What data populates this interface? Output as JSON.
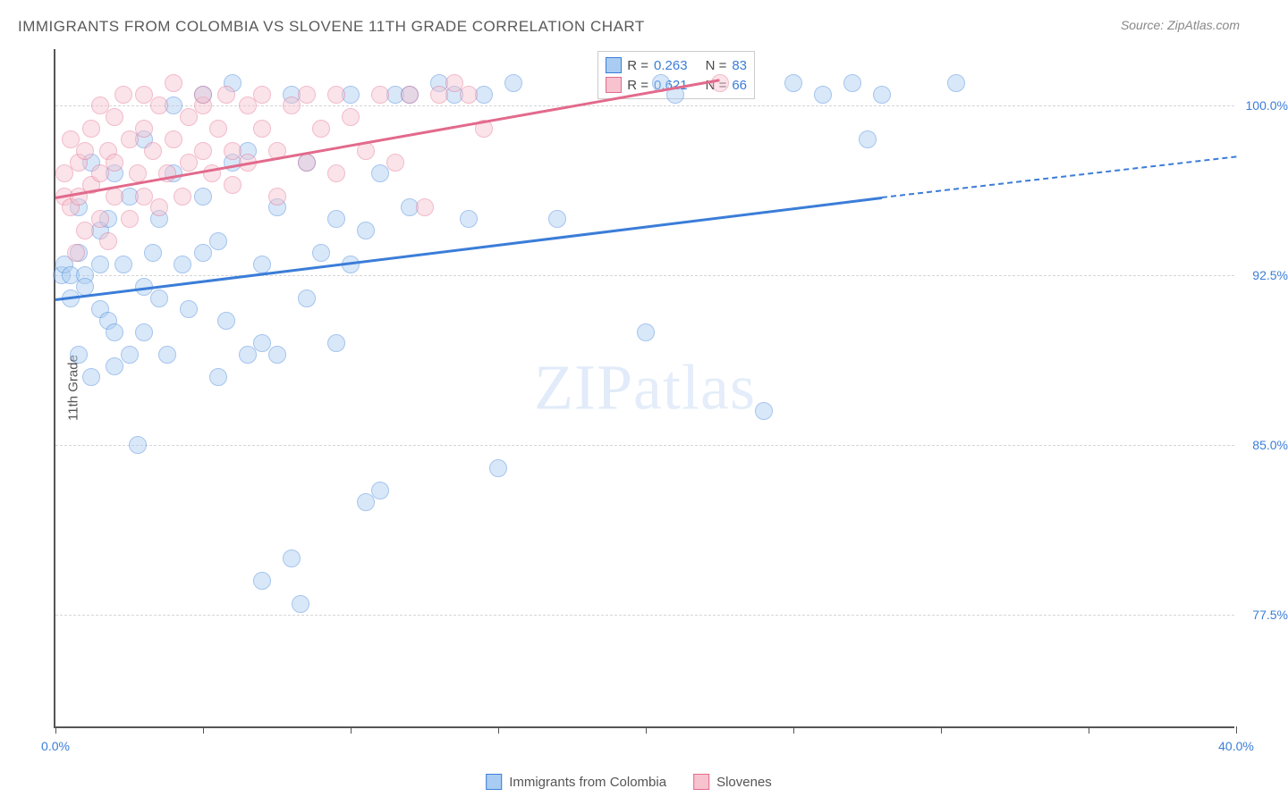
{
  "title": "IMMIGRANTS FROM COLOMBIA VS SLOVENE 11TH GRADE CORRELATION CHART",
  "source": "Source: ZipAtlas.com",
  "ylabel": "11th Grade",
  "watermark": "ZIPatlas",
  "chart": {
    "type": "scatter",
    "background_color": "#ffffff",
    "grid_color": "#d5d5d5",
    "axis_color": "#555555",
    "xlim": [
      0,
      40
    ],
    "ylim": [
      72.5,
      102.5
    ],
    "xticks": [
      0,
      5,
      10,
      15,
      20,
      25,
      30,
      35,
      40
    ],
    "xtick_labels_shown": {
      "0": "0.0%",
      "40": "40.0%"
    },
    "yticks": [
      77.5,
      85.0,
      92.5,
      100.0
    ],
    "ytick_labels": [
      "77.5%",
      "85.0%",
      "92.5%",
      "100.0%"
    ],
    "marker_radius": 10,
    "marker_opacity": 0.45,
    "marker_border_opacity": 0.9,
    "title_fontsize": 17,
    "label_fontsize": 15,
    "tick_fontsize": 14,
    "tick_label_color": "#3b7dd8"
  },
  "series": [
    {
      "name": "Immigrants from Colombia",
      "color_fill": "#a9cdf2",
      "color_stroke": "#3b7dd8",
      "R": "0.263",
      "N": "83",
      "trend": {
        "x0": 0,
        "y0": 91.5,
        "x1": 28,
        "y1": 96.0,
        "dash_to_x": 40,
        "dash_to_y": 97.8
      },
      "points": [
        [
          0.2,
          92.5
        ],
        [
          0.3,
          93.0
        ],
        [
          0.5,
          92.5
        ],
        [
          0.5,
          91.5
        ],
        [
          0.8,
          93.5
        ],
        [
          0.8,
          95.5
        ],
        [
          0.8,
          89.0
        ],
        [
          1.0,
          92.5
        ],
        [
          1.0,
          92.0
        ],
        [
          1.2,
          97.5
        ],
        [
          1.2,
          88.0
        ],
        [
          1.5,
          94.5
        ],
        [
          1.5,
          91.0
        ],
        [
          1.5,
          93.0
        ],
        [
          1.8,
          90.5
        ],
        [
          1.8,
          95.0
        ],
        [
          2.0,
          97.0
        ],
        [
          2.0,
          90.0
        ],
        [
          2.0,
          88.5
        ],
        [
          2.3,
          93.0
        ],
        [
          2.5,
          96.0
        ],
        [
          2.5,
          89.0
        ],
        [
          2.8,
          85.0
        ],
        [
          3.0,
          92.0
        ],
        [
          3.0,
          98.5
        ],
        [
          3.0,
          90.0
        ],
        [
          3.3,
          93.5
        ],
        [
          3.5,
          95.0
        ],
        [
          3.5,
          91.5
        ],
        [
          3.8,
          89.0
        ],
        [
          4.0,
          97.0
        ],
        [
          4.0,
          100.0
        ],
        [
          4.3,
          93.0
        ],
        [
          4.5,
          91.0
        ],
        [
          5.0,
          96.0
        ],
        [
          5.0,
          93.5
        ],
        [
          5.0,
          100.5
        ],
        [
          5.5,
          88.0
        ],
        [
          5.5,
          94.0
        ],
        [
          5.8,
          90.5
        ],
        [
          6.0,
          97.5
        ],
        [
          6.0,
          101.0
        ],
        [
          6.5,
          89.0
        ],
        [
          6.5,
          98.0
        ],
        [
          7.0,
          93.0
        ],
        [
          7.0,
          79.0
        ],
        [
          7.0,
          89.5
        ],
        [
          7.5,
          95.5
        ],
        [
          7.5,
          89.0
        ],
        [
          8.0,
          100.5
        ],
        [
          8.0,
          80.0
        ],
        [
          8.3,
          78.0
        ],
        [
          8.5,
          91.5
        ],
        [
          8.5,
          97.5
        ],
        [
          9.0,
          93.5
        ],
        [
          9.5,
          95.0
        ],
        [
          9.5,
          89.5
        ],
        [
          10.0,
          100.5
        ],
        [
          10.0,
          93.0
        ],
        [
          10.5,
          94.5
        ],
        [
          10.5,
          82.5
        ],
        [
          11.0,
          97.0
        ],
        [
          11.0,
          83.0
        ],
        [
          11.5,
          100.5
        ],
        [
          12.0,
          95.5
        ],
        [
          12.0,
          100.5
        ],
        [
          13.0,
          101.0
        ],
        [
          13.5,
          100.5
        ],
        [
          14.0,
          95.0
        ],
        [
          14.5,
          100.5
        ],
        [
          15.0,
          84.0
        ],
        [
          15.5,
          101.0
        ],
        [
          17.0,
          95.0
        ],
        [
          20.0,
          90.0
        ],
        [
          20.5,
          101.0
        ],
        [
          21.0,
          100.5
        ],
        [
          24.0,
          86.5
        ],
        [
          25.0,
          101.0
        ],
        [
          26.0,
          100.5
        ],
        [
          27.0,
          101.0
        ],
        [
          27.5,
          98.5
        ],
        [
          28.0,
          100.5
        ],
        [
          30.5,
          101.0
        ]
      ]
    },
    {
      "name": "Slovenes",
      "color_fill": "#f6c3cf",
      "color_stroke": "#e26a8c",
      "R": "0.621",
      "N": "66",
      "trend": {
        "x0": 0,
        "y0": 96.0,
        "x1": 22.5,
        "y1": 101.2
      },
      "points": [
        [
          0.3,
          96.0
        ],
        [
          0.3,
          97.0
        ],
        [
          0.5,
          95.5
        ],
        [
          0.5,
          98.5
        ],
        [
          0.7,
          93.5
        ],
        [
          0.8,
          96.0
        ],
        [
          0.8,
          97.5
        ],
        [
          1.0,
          98.0
        ],
        [
          1.0,
          94.5
        ],
        [
          1.2,
          99.0
        ],
        [
          1.2,
          96.5
        ],
        [
          1.5,
          100.0
        ],
        [
          1.5,
          95.0
        ],
        [
          1.5,
          97.0
        ],
        [
          1.8,
          98.0
        ],
        [
          1.8,
          94.0
        ],
        [
          2.0,
          99.5
        ],
        [
          2.0,
          96.0
        ],
        [
          2.0,
          97.5
        ],
        [
          2.3,
          100.5
        ],
        [
          2.5,
          95.0
        ],
        [
          2.5,
          98.5
        ],
        [
          2.8,
          97.0
        ],
        [
          3.0,
          99.0
        ],
        [
          3.0,
          100.5
        ],
        [
          3.0,
          96.0
        ],
        [
          3.3,
          98.0
        ],
        [
          3.5,
          95.5
        ],
        [
          3.5,
          100.0
        ],
        [
          3.8,
          97.0
        ],
        [
          4.0,
          98.5
        ],
        [
          4.0,
          101.0
        ],
        [
          4.3,
          96.0
        ],
        [
          4.5,
          99.5
        ],
        [
          4.5,
          97.5
        ],
        [
          5.0,
          100.0
        ],
        [
          5.0,
          98.0
        ],
        [
          5.0,
          100.5
        ],
        [
          5.3,
          97.0
        ],
        [
          5.5,
          99.0
        ],
        [
          5.8,
          100.5
        ],
        [
          6.0,
          98.0
        ],
        [
          6.0,
          96.5
        ],
        [
          6.5,
          100.0
        ],
        [
          6.5,
          97.5
        ],
        [
          7.0,
          99.0
        ],
        [
          7.0,
          100.5
        ],
        [
          7.5,
          98.0
        ],
        [
          7.5,
          96.0
        ],
        [
          8.0,
          100.0
        ],
        [
          8.5,
          97.5
        ],
        [
          8.5,
          100.5
        ],
        [
          9.0,
          99.0
        ],
        [
          9.5,
          97.0
        ],
        [
          9.5,
          100.5
        ],
        [
          10.0,
          99.5
        ],
        [
          10.5,
          98.0
        ],
        [
          11.0,
          100.5
        ],
        [
          11.5,
          97.5
        ],
        [
          12.0,
          100.5
        ],
        [
          12.5,
          95.5
        ],
        [
          13.0,
          100.5
        ],
        [
          13.5,
          101.0
        ],
        [
          14.0,
          100.5
        ],
        [
          14.5,
          99.0
        ],
        [
          22.5,
          101.0
        ]
      ]
    }
  ],
  "stats_labels": {
    "R": "R =",
    "N": "N ="
  },
  "legend": [
    {
      "label": "Immigrants from Colombia",
      "fill": "#a9cdf2",
      "stroke": "#3b7dd8"
    },
    {
      "label": "Slovenes",
      "fill": "#f6c3cf",
      "stroke": "#e26a8c"
    }
  ]
}
